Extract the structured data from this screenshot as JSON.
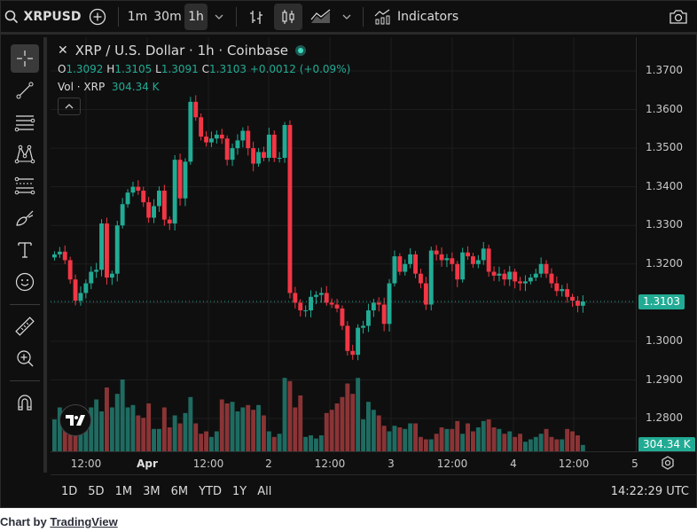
{
  "toolbar": {
    "symbol": "XRPUSD",
    "intervals": [
      "1m",
      "30m",
      "1h"
    ],
    "active_interval": "1h",
    "indicators_label": "Indicators",
    "icons": [
      "search-icon",
      "add-symbol-icon",
      "interval-dropdown-icon",
      "bar-style-icon",
      "candle-style-icon",
      "area-style-icon",
      "chart-style-dropdown-icon",
      "indicators-icon",
      "camera-icon"
    ]
  },
  "left_tools": [
    "crosshair-icon",
    "trend-line-icon",
    "horizontal-lines-icon",
    "pattern-icon",
    "fib-icon",
    "brush-icon",
    "text-icon",
    "emoji-icon",
    "ruler-icon",
    "zoom-in-icon",
    "magnet-icon"
  ],
  "legend": {
    "title": "XRP / U.S. Dollar · 1h · Coinbase",
    "o_label": "O",
    "o": "1.3092",
    "h_label": "H",
    "h": "1.3105",
    "l_label": "L",
    "l": "1.3091",
    "c_label": "C",
    "c": "1.3103",
    "change": "+0.0012 (+0.09%)",
    "vol_label": "Vol · XRP",
    "vol": "304.34 K"
  },
  "price_axis": {
    "labels": [
      "1.3700",
      "1.3600",
      "1.3500",
      "1.3400",
      "1.3300",
      "1.3200",
      "1.3000",
      "1.2900",
      "1.2800"
    ],
    "current_price_tag": "1.3103",
    "volume_tag": "304.34 K"
  },
  "time_axis": {
    "labels": [
      "12:00",
      "Apr",
      "12:00",
      "2",
      "12:00",
      "3",
      "12:00",
      "4",
      "12:00",
      "5"
    ]
  },
  "bottom_bar": {
    "ranges": [
      "1D",
      "5D",
      "1M",
      "3M",
      "6M",
      "YTD",
      "1Y",
      "All"
    ],
    "clock": "14:22:29 UTC"
  },
  "footer": {
    "prefix": "Chart by",
    "link": "TradingView"
  },
  "colors": {
    "up": "#22ab94",
    "down": "#f23645",
    "vol_up": "#1f6b61",
    "vol_down": "#8a3436",
    "background": "#0f0f0f",
    "grid": "#1e1e1e"
  },
  "chart_data": {
    "type": "candlestick",
    "title": "XRP / U.S. Dollar · 1h · Coinbase",
    "ylim": [
      1.273,
      1.379
    ],
    "x_ticks": [
      "12:00",
      "Apr",
      "12:00",
      "2",
      "12:00",
      "3",
      "12:00",
      "4",
      "12:00",
      "5"
    ],
    "closes": [
      1.3225,
      1.3232,
      1.321,
      1.316,
      1.3105,
      1.3125,
      1.315,
      1.318,
      1.3185,
      1.3305,
      1.3165,
      1.3175,
      1.33,
      1.3355,
      1.3385,
      1.34,
      1.339,
      1.336,
      1.332,
      1.335,
      1.339,
      1.3315,
      1.3305,
      1.347,
      1.337,
      1.3465,
      1.362,
      1.358,
      1.353,
      1.3515,
      1.3525,
      1.3535,
      1.3525,
      1.347,
      1.35,
      1.352,
      1.3545,
      1.35,
      1.346,
      1.349,
      1.3475,
      1.3535,
      1.3475,
      1.3475,
      1.356,
      1.3125,
      1.31,
      1.308,
      1.308,
      1.3115,
      1.312,
      1.3125,
      1.31,
      1.3095,
      1.3085,
      1.304,
      1.2975,
      1.2965,
      1.3035,
      1.304,
      1.308,
      1.31,
      1.3095,
      1.3045,
      1.315,
      1.322,
      1.318,
      1.32,
      1.3225,
      1.3175,
      1.315,
      1.3095,
      1.3235,
      1.3225,
      1.321,
      1.3215,
      1.32,
      1.316,
      1.323,
      1.322,
      1.32,
      1.321,
      1.324,
      1.318,
      1.317,
      1.3175,
      1.316,
      1.318,
      1.3155,
      1.315,
      1.3155,
      1.3165,
      1.3175,
      1.32,
      1.3175,
      1.315,
      1.313,
      1.3135,
      1.3115,
      1.3105,
      1.3092,
      1.3103
    ],
    "volumes": [
      40,
      55,
      35,
      30,
      25,
      30,
      40,
      55,
      65,
      50,
      80,
      55,
      72,
      90,
      55,
      58,
      45,
      42,
      60,
      28,
      28,
      55,
      30,
      45,
      35,
      48,
      68,
      35,
      22,
      25,
      18,
      25,
      65,
      60,
      62,
      50,
      55,
      58,
      52,
      58,
      45,
      25,
      18,
      22,
      92,
      88,
      55,
      70,
      18,
      20,
      16,
      20,
      48,
      52,
      60,
      68,
      85,
      72,
      92,
      40,
      62,
      52,
      45,
      32,
      25,
      32,
      30,
      28,
      35,
      35,
      18,
      15,
      15,
      22,
      30,
      28,
      28,
      38,
      22,
      35,
      25,
      30,
      38,
      40,
      30,
      28,
      22,
      25,
      18,
      22,
      12,
      15,
      18,
      22,
      28,
      18,
      15,
      15,
      28,
      25,
      20,
      8
    ]
  }
}
